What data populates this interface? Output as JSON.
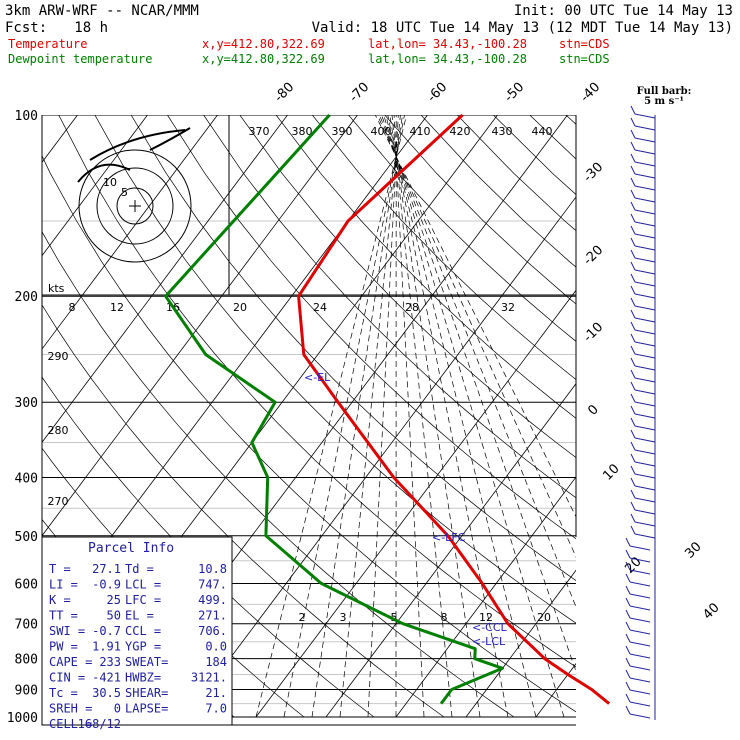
{
  "header": {
    "model": "3km ARW-WRF -- NCAR/MMM",
    "init": "Init: 00 UTC Tue 14 May 13",
    "fcst_label": "Fcst:",
    "fcst_value": "18 h",
    "valid": "Valid: 18 UTC Tue 14 May 13 (12 MDT Tue 14 May 13)"
  },
  "legend": {
    "temperature": {
      "label": "Temperature",
      "xy": "x,y=412.80,322.69",
      "latlon": "lat,lon= 34.43,-100.28",
      "stn": "stn=CDS",
      "color": "#e00000"
    },
    "dewpoint": {
      "label": "Dewpoint temperature",
      "xy": "x,y=412.80,322.69",
      "latlon": "lat,lon= 34.43,-100.28",
      "stn": "stn=CDS",
      "color": "#008000"
    }
  },
  "wind_barb_legend": {
    "line1": "Full barb:",
    "line2": "5 m s⁻¹"
  },
  "markers": {
    "el": "<-EL",
    "lfc": "<-LFC",
    "ccl": "<-CCL",
    "lcl": "<-LCL"
  },
  "hodograph": {
    "ring_labels": [
      "10",
      "5"
    ]
  },
  "parcel_info": {
    "title": "Parcel Info",
    "rows": [
      [
        "T  =",
        "27.1",
        "Td =",
        "10.8"
      ],
      [
        "LI =",
        "-0.9",
        "LCL =",
        "747."
      ],
      [
        "K  =",
        "25",
        "LFC =",
        "499."
      ],
      [
        "TT =",
        "50",
        "EL  =",
        "271."
      ],
      [
        "SWI =",
        "-0.7",
        "CCL =",
        "706."
      ],
      [
        "PW =",
        "1.91",
        "YGP =",
        "0.0"
      ],
      [
        "CAPE =",
        "233",
        "SWEAT=",
        "184"
      ],
      [
        "CIN =",
        "-421",
        "HWBZ=",
        "3121."
      ],
      [
        "Tc =",
        "30.5",
        "SHEAR=",
        "21."
      ],
      [
        "SREH =",
        "0",
        "LAPSE=",
        "7.0"
      ],
      [
        "CELL =",
        "168/12",
        "",
        ""
      ]
    ]
  },
  "chart_data": {
    "type": "line",
    "title": "",
    "ylabel": "",
    "pressure_levels": [
      100,
      200,
      300,
      400,
      500,
      600,
      700,
      800,
      900,
      1000
    ],
    "isotherm_labels": [
      "-80",
      "-70",
      "-60",
      "-50",
      "-40",
      "-30",
      "-20",
      "-10",
      "0",
      "10",
      "20",
      "30",
      "40"
    ],
    "theta_labels": [
      "370",
      "380",
      "390",
      "400",
      "410",
      "420",
      "430",
      "440"
    ],
    "hodo_speed_labels_kts": [
      "8",
      "12",
      "16",
      "20",
      "24",
      "28",
      "32"
    ],
    "left_theta_labels": [
      "290",
      "280",
      "270"
    ],
    "mixing_ratio_labels": [
      "2",
      "3",
      "5",
      "8",
      "12",
      "20"
    ],
    "series": [
      {
        "name": "Temperature",
        "color": "#e00000",
        "points": [
          [
            100,
            -55
          ],
          [
            150,
            -60
          ],
          [
            200,
            -59
          ],
          [
            250,
            -52
          ],
          [
            300,
            -42
          ],
          [
            400,
            -26
          ],
          [
            500,
            -12
          ],
          [
            600,
            -2
          ],
          [
            700,
            6
          ],
          [
            800,
            15
          ],
          [
            850,
            20
          ],
          [
            900,
            25
          ],
          [
            950,
            29
          ]
        ]
      },
      {
        "name": "Dewpoint temperature",
        "color": "#008000",
        "points": [
          [
            100,
            -74
          ],
          [
            200,
            -78
          ],
          [
            250,
            -66
          ],
          [
            300,
            -51
          ],
          [
            350,
            -50
          ],
          [
            400,
            -44
          ],
          [
            500,
            -38
          ],
          [
            600,
            -25
          ],
          [
            700,
            -9
          ],
          [
            770,
            4
          ],
          [
            800,
            5
          ],
          [
            830,
            10
          ],
          [
            900,
            5
          ],
          [
            950,
            5
          ]
        ]
      }
    ]
  }
}
